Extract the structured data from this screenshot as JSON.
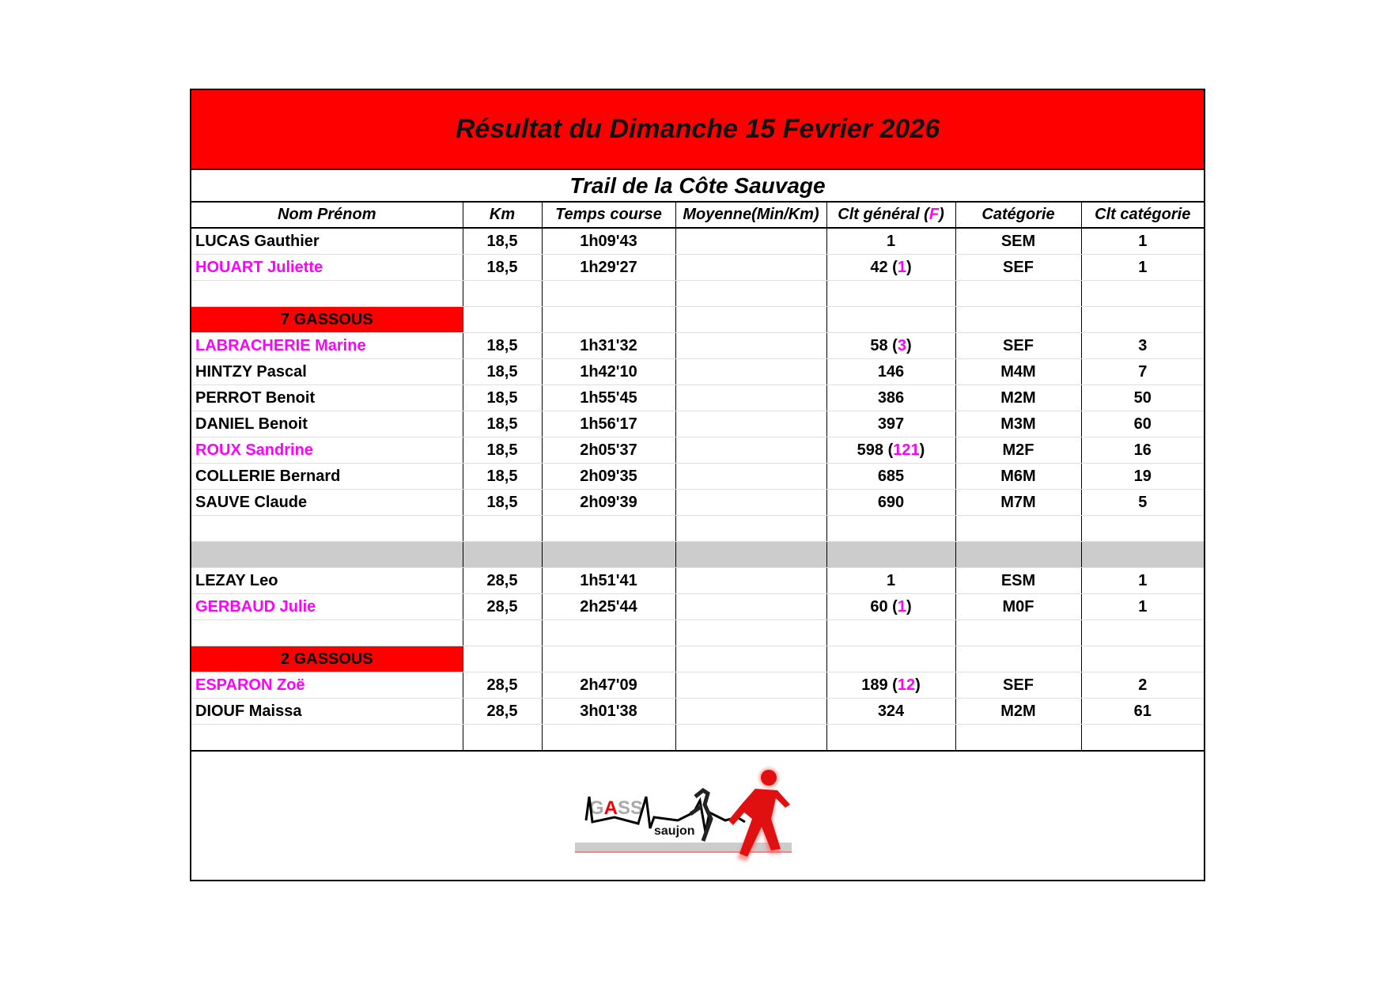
{
  "title": "Résultat du Dimanche 15 Fevrier 2026",
  "subtitle": "Trail de la Côte Sauvage",
  "columns": [
    "Nom Prénom",
    "Km",
    "Temps course",
    "Moyenne(Min/Km)",
    "Clt général (",
    "F",
    ")",
    "Catégorie",
    "Clt catégorie"
  ],
  "colors": {
    "header_band": "#ff0000",
    "female": "#ff00ff",
    "separator": "#cccccc"
  },
  "rows": [
    {
      "type": "data",
      "name": "LUCAS Gauthier",
      "female": false,
      "km": "18,5",
      "time": "1h09'43",
      "avg": "",
      "clt": "1",
      "f": "",
      "cat": "SEM",
      "cltcat": "1"
    },
    {
      "type": "data",
      "name": "HOUART Juliette",
      "female": true,
      "km": "18,5",
      "time": "1h29'27",
      "avg": "",
      "clt": "42",
      "f": "1",
      "cat": "SEF",
      "cltcat": "1"
    },
    {
      "type": "blank"
    },
    {
      "type": "group",
      "label": "7 GASSOUS"
    },
    {
      "type": "data",
      "name": "LABRACHERIE Marine",
      "female": true,
      "km": "18,5",
      "time": "1h31'32",
      "avg": "",
      "clt": "58",
      "f": "3",
      "cat": "SEF",
      "cltcat": "3"
    },
    {
      "type": "data",
      "name": "HINTZY Pascal",
      "female": false,
      "km": "18,5",
      "time": "1h42'10",
      "avg": "",
      "clt": "146",
      "f": "",
      "cat": "M4M",
      "cltcat": "7"
    },
    {
      "type": "data",
      "name": "PERROT Benoit",
      "female": false,
      "km": "18,5",
      "time": "1h55'45",
      "avg": "",
      "clt": "386",
      "f": "",
      "cat": "M2M",
      "cltcat": "50"
    },
    {
      "type": "data",
      "name": "DANIEL Benoit",
      "female": false,
      "km": "18,5",
      "time": "1h56'17",
      "avg": "",
      "clt": "397",
      "f": "",
      "cat": "M3M",
      "cltcat": "60"
    },
    {
      "type": "data",
      "name": "ROUX Sandrine",
      "female": true,
      "km": "18,5",
      "time": "2h05'37",
      "avg": "",
      "clt": "598",
      "f": "121",
      "cat": "M2F",
      "cltcat": "16"
    },
    {
      "type": "data",
      "name": "COLLERIE Bernard",
      "female": false,
      "km": "18,5",
      "time": "2h09'35",
      "avg": "",
      "clt": "685",
      "f": "",
      "cat": "M6M",
      "cltcat": "19"
    },
    {
      "type": "data",
      "name": "SAUVE Claude",
      "female": false,
      "km": "18,5",
      "time": "2h09'39",
      "avg": "",
      "clt": "690",
      "f": "",
      "cat": "M7M",
      "cltcat": "5"
    },
    {
      "type": "blank"
    },
    {
      "type": "grey"
    },
    {
      "type": "data",
      "name": "LEZAY Leo",
      "female": false,
      "km": "28,5",
      "time": "1h51'41",
      "avg": "",
      "clt": "1",
      "f": "",
      "cat": "ESM",
      "cltcat": "1"
    },
    {
      "type": "data",
      "name": "GERBAUD Julie",
      "female": true,
      "km": "28,5",
      "time": "2h25'44",
      "avg": "",
      "clt": "60",
      "f": "1",
      "cat": "M0F",
      "cltcat": "1"
    },
    {
      "type": "blank"
    },
    {
      "type": "group",
      "label": "2 GASSOUS"
    },
    {
      "type": "data",
      "name": "ESPARON Zoë",
      "female": true,
      "km": "28,5",
      "time": "2h47'09",
      "avg": "",
      "clt": "189",
      "f": "12",
      "cat": "SEF",
      "cltcat": "2"
    },
    {
      "type": "data",
      "name": "DIOUF Maissa",
      "female": false,
      "km": "28,5",
      "time": "3h01'38",
      "avg": "",
      "clt": "324",
      "f": "",
      "cat": "M2M",
      "cltcat": "61"
    },
    {
      "type": "blank"
    }
  ],
  "logo": {
    "text": "GASS saujon"
  }
}
